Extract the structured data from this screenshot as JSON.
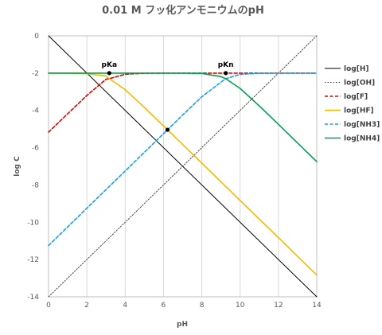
{
  "chart_data": {
    "type": "line",
    "title": "0.01 M フッ化アンモニウムのpH",
    "xlabel": "pH",
    "ylabel": "log C",
    "xlim": [
      0,
      14
    ],
    "ylim": [
      -14,
      0
    ],
    "xticks": [
      0,
      2,
      4,
      6,
      8,
      10,
      12,
      14
    ],
    "yticks": [
      0,
      -2,
      -4,
      -6,
      -8,
      -10,
      -12,
      -14
    ],
    "grid": "vertical",
    "legend_position": "right",
    "constants": {
      "C": 0.01,
      "pKa": 3.17,
      "pKn": 9.25,
      "pKw": 14
    },
    "series": [
      {
        "key": "H",
        "name": "log[H]",
        "color": "#000000",
        "dash": "solid",
        "x": [
          0,
          14
        ],
        "y": [
          0,
          -14
        ]
      },
      {
        "key": "OH",
        "name": "log[OH]",
        "color": "#404040",
        "dash": "dotted",
        "x": [
          0,
          14
        ],
        "y": [
          -14,
          0
        ]
      },
      {
        "key": "F",
        "name": "log[F]",
        "color": "#e00000",
        "dash": "dashed",
        "x": [
          0,
          1,
          2,
          3,
          3.17,
          4,
          5,
          6,
          7,
          8,
          9,
          10,
          11,
          12,
          13,
          14
        ],
        "y": [
          -5.17,
          -4.18,
          -3.2,
          -2.33,
          -2.3,
          -2.06,
          -2.01,
          -2.0,
          -2.0,
          -2.0,
          -2.0,
          -2.0,
          -2.0,
          -2.0,
          -2.0,
          -2.0
        ]
      },
      {
        "key": "HF",
        "name": "log[HF]",
        "color": "#f5b800",
        "dash": "solid",
        "x": [
          0,
          1,
          2,
          3,
          3.17,
          4,
          5,
          6,
          6.21,
          7,
          8,
          9,
          10,
          11,
          12,
          13,
          14
        ],
        "y": [
          -2.0,
          -2.0,
          -2.03,
          -2.16,
          -2.3,
          -2.89,
          -3.84,
          -4.83,
          -5.04,
          -5.83,
          -6.83,
          -7.83,
          -8.83,
          -9.83,
          -10.83,
          -11.83,
          -12.83
        ]
      },
      {
        "key": "NH3",
        "name": "log[NH3]",
        "color": "#1aa0e0",
        "dash": "dashed",
        "x": [
          0,
          1,
          2,
          3,
          4,
          5,
          6,
          6.21,
          7,
          8,
          9,
          9.25,
          10,
          11,
          12,
          13,
          14
        ],
        "y": [
          -11.25,
          -10.25,
          -9.25,
          -8.25,
          -7.25,
          -6.25,
          -5.25,
          -5.04,
          -4.25,
          -3.27,
          -2.49,
          -2.3,
          -2.07,
          -2.01,
          -2.0,
          -2.0,
          -2.0
        ]
      },
      {
        "key": "NH4",
        "name": "log[NH4]",
        "color": "#00a050",
        "dash": "solid",
        "x": [
          0,
          1,
          2,
          3,
          4,
          5,
          6,
          7,
          8,
          9,
          9.25,
          10,
          11,
          12,
          13,
          14
        ],
        "y": [
          -2.0,
          -2.0,
          -2.0,
          -2.0,
          -2.0,
          -2.0,
          -2.0,
          -2.0,
          -2.02,
          -2.19,
          -2.3,
          -2.82,
          -3.76,
          -4.75,
          -5.75,
          -6.75
        ]
      }
    ],
    "markers": [
      {
        "label": "pKa",
        "x": 3.17,
        "y": -2.0
      },
      {
        "label": "pKn",
        "x": 9.25,
        "y": -2.0
      },
      {
        "label": "",
        "x": 6.21,
        "y": -5.04
      }
    ]
  }
}
